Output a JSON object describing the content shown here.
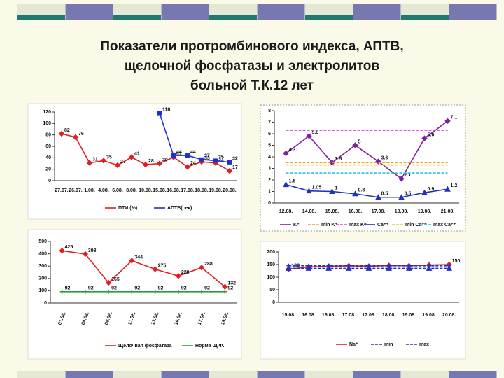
{
  "title": [
    "Показатели протромбинового индекса, АПТВ,",
    "щелочной фосфатазы и электролитов",
    "больной Т.К.12 лет"
  ],
  "chart_data": [
    {
      "type": "line",
      "categories": [
        "27.07.",
        "26.07.",
        "1.08.",
        "4.08.",
        "6.08.",
        "8.08.",
        "10.08.",
        "15.08.",
        "16.08.",
        "17.08.",
        "18.08.",
        "19.08.",
        "20.08."
      ],
      "ylim": [
        0,
        120
      ],
      "yticks": [
        0,
        20,
        40,
        60,
        80,
        100,
        120
      ],
      "grid": false,
      "series": [
        {
          "name": "ПТИ (%)",
          "color": "#e02020",
          "marker": "diamond",
          "data_labels": "all",
          "values": [
            82,
            76,
            31,
            35,
            27,
            41,
            28,
            30,
            41,
            24,
            33,
            31,
            17
          ]
        },
        {
          "name": "АПТВ(сек)",
          "color": "#2030d0",
          "marker": "square",
          "data_labels": "all",
          "values": [
            null,
            null,
            null,
            null,
            null,
            null,
            null,
            118,
            44,
            44,
            37,
            35,
            32
          ]
        }
      ]
    },
    {
      "type": "line",
      "categories": [
        "12.08.",
        "14.08.",
        "15.08.",
        "16.08.",
        "17.08.",
        "18.08.",
        "19.08.",
        "21.08."
      ],
      "ylim": [
        0,
        8
      ],
      "yticks": [
        0,
        1,
        2,
        3,
        4,
        5,
        6,
        7,
        8
      ],
      "grid": false,
      "series": [
        {
          "name": "K⁺",
          "color": "#8020a0",
          "marker": "diamond",
          "data_labels": "all",
          "values": [
            4.3,
            5.8,
            3.5,
            5,
            3.6,
            2.1,
            5.6,
            7.1
          ]
        },
        {
          "name": "min K⁺",
          "color": "#f0a020",
          "marker": "none",
          "dashed": true,
          "values": [
            3.5,
            3.5,
            3.5,
            3.5,
            3.5,
            3.5,
            3.5,
            3.5
          ]
        },
        {
          "name": "max K⁺",
          "color": "#e040e0",
          "marker": "none",
          "dashed": true,
          "values": [
            6.3,
            6.3,
            6.3,
            6.3,
            6.3,
            6.3,
            6.3,
            6.3
          ]
        },
        {
          "name": "Ca⁺⁺",
          "color": "#2030c0",
          "marker": "triangle",
          "data_labels": "all",
          "values": [
            1.6,
            1.05,
            1,
            0.8,
            0.5,
            0.5,
            0.9,
            1.2
          ]
        },
        {
          "name": "min Ca⁺⁺",
          "color": "#e8d020",
          "marker": "none",
          "dashed": true,
          "values": [
            3.3,
            3.3,
            3.3,
            3.3,
            3.3,
            3.3,
            3.3,
            3.3
          ]
        },
        {
          "name": "max Ca⁺⁺",
          "color": "#30c0e0",
          "marker": "none",
          "dashed": true,
          "values": [
            2.6,
            2.6,
            2.6,
            2.6,
            2.6,
            2.6,
            2.6,
            2.6
          ]
        }
      ]
    },
    {
      "type": "line",
      "categories": [
        "01.08.",
        "04.08.",
        "08.08.",
        "11.08.",
        "13.08.",
        "16.08.",
        "17.08.",
        "19.08."
      ],
      "ylim": [
        0,
        500
      ],
      "yticks": [
        0,
        100,
        200,
        300,
        400,
        500
      ],
      "grid": false,
      "series": [
        {
          "name": "Щелочная фосфатаза",
          "color": "#e02020",
          "marker": "diamond",
          "data_labels": "all",
          "values": [
            425,
            398,
            165,
            344,
            275,
            220,
            288,
            132
          ]
        },
        {
          "name": "Норма Щ.Ф.",
          "color": "#20a040",
          "marker": "plus",
          "data_labels": "all",
          "values": [
            92,
            92,
            92,
            92,
            92,
            92,
            92,
            92
          ]
        }
      ]
    },
    {
      "type": "line",
      "categories": [
        "15.08.",
        "16.08.",
        "16.08.",
        "17.08.",
        "17.08.",
        "18.08.",
        "19.08.",
        "19.08.",
        "20.08."
      ],
      "ylim": [
        0,
        200
      ],
      "yticks": [
        0,
        50,
        100,
        150,
        200
      ],
      "grid": false,
      "series": [
        {
          "name": "Na⁺",
          "color": "#e02020",
          "marker": "diamond",
          "data_labels": "ends",
          "values": [
            132,
            140,
            143,
            145,
            143,
            146,
            145,
            148,
            150
          ]
        },
        {
          "name": "min",
          "color": "#2030c0",
          "marker": "triangle",
          "dashed": true,
          "values": [
            135,
            135,
            135,
            135,
            135,
            135,
            135,
            135,
            135
          ]
        },
        {
          "name": "max",
          "color": "#2030c0",
          "marker": "plus",
          "dashed": true,
          "values": [
            145,
            145,
            145,
            145,
            145,
            145,
            145,
            145,
            145
          ]
        }
      ]
    }
  ]
}
